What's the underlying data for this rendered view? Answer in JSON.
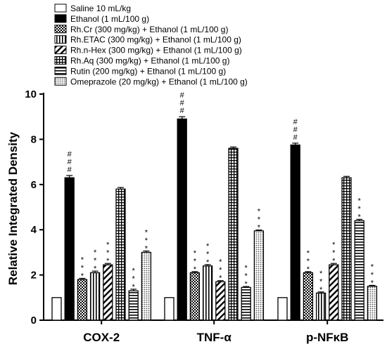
{
  "chart_data": {
    "type": "bar",
    "title": "",
    "xlabel": "",
    "ylabel": "Relative Integrated Density",
    "ylim": [
      0,
      10
    ],
    "yticks": [
      0,
      2,
      4,
      6,
      8,
      10
    ],
    "grid": false,
    "legend_position": "top-left",
    "categories": [
      "COX-2",
      "TNF-α",
      "p-NFκB"
    ],
    "series": [
      {
        "name": "Saline 10 mL/kg",
        "pattern": "white",
        "values": [
          1.0,
          1.0,
          1.0
        ],
        "errors": [
          0,
          0,
          0
        ],
        "marks": [
          "",
          "",
          ""
        ]
      },
      {
        "name": "Ethanol (1 mL/100 g)",
        "pattern": "black",
        "values": [
          6.3,
          8.9,
          7.75
        ],
        "errors": [
          0.1,
          0.1,
          0.08
        ],
        "marks": [
          "###",
          "###",
          "###"
        ]
      },
      {
        "name": "Rh.Cr (300 mg/kg) + Ethanol (1 mL/100 g)",
        "pattern": "checker",
        "values": [
          1.8,
          2.1,
          2.1
        ],
        "errors": [
          0.05,
          0.05,
          0.05
        ],
        "marks": [
          "***",
          "***",
          "***"
        ]
      },
      {
        "name": "Rh.ETAC (300 mg/kg) + Ethanol (1 mL/100 g)",
        "pattern": "vlines",
        "values": [
          2.1,
          2.4,
          1.2
        ],
        "errors": [
          0.07,
          0.06,
          0.05
        ],
        "marks": [
          "***",
          "***",
          "***"
        ]
      },
      {
        "name": "Rh.n-Hex (300 mg/kg) + Ethanol (1 mL/100 g)",
        "pattern": "diag",
        "values": [
          2.45,
          1.7,
          2.45
        ],
        "errors": [
          0.06,
          0.05,
          0.06
        ],
        "marks": [
          "***",
          "***",
          "***"
        ]
      },
      {
        "name": "Rh.Aq (300 mg/kg) + Ethanol (1 mL/100 g)",
        "pattern": "grid",
        "values": [
          5.8,
          7.6,
          6.3
        ],
        "errors": [
          0.07,
          0.06,
          0.06
        ],
        "marks": [
          "",
          "",
          ""
        ]
      },
      {
        "name": "Rutin (200 mg/kg) + Ethanol (1 mL/100 g)",
        "pattern": "hlines",
        "values": [
          1.3,
          1.45,
          4.4
        ],
        "errors": [
          0.07,
          0.04,
          0.06
        ],
        "marks": [
          "***",
          "***",
          "***"
        ]
      },
      {
        "name": "Omeprazole (20 mg/kg) + Ethanol (1 mL/100 g)",
        "pattern": "dots",
        "values": [
          3.0,
          3.95,
          1.5
        ],
        "errors": [
          0.06,
          0.04,
          0.04
        ],
        "marks": [
          "***",
          "***",
          "***"
        ]
      }
    ]
  }
}
